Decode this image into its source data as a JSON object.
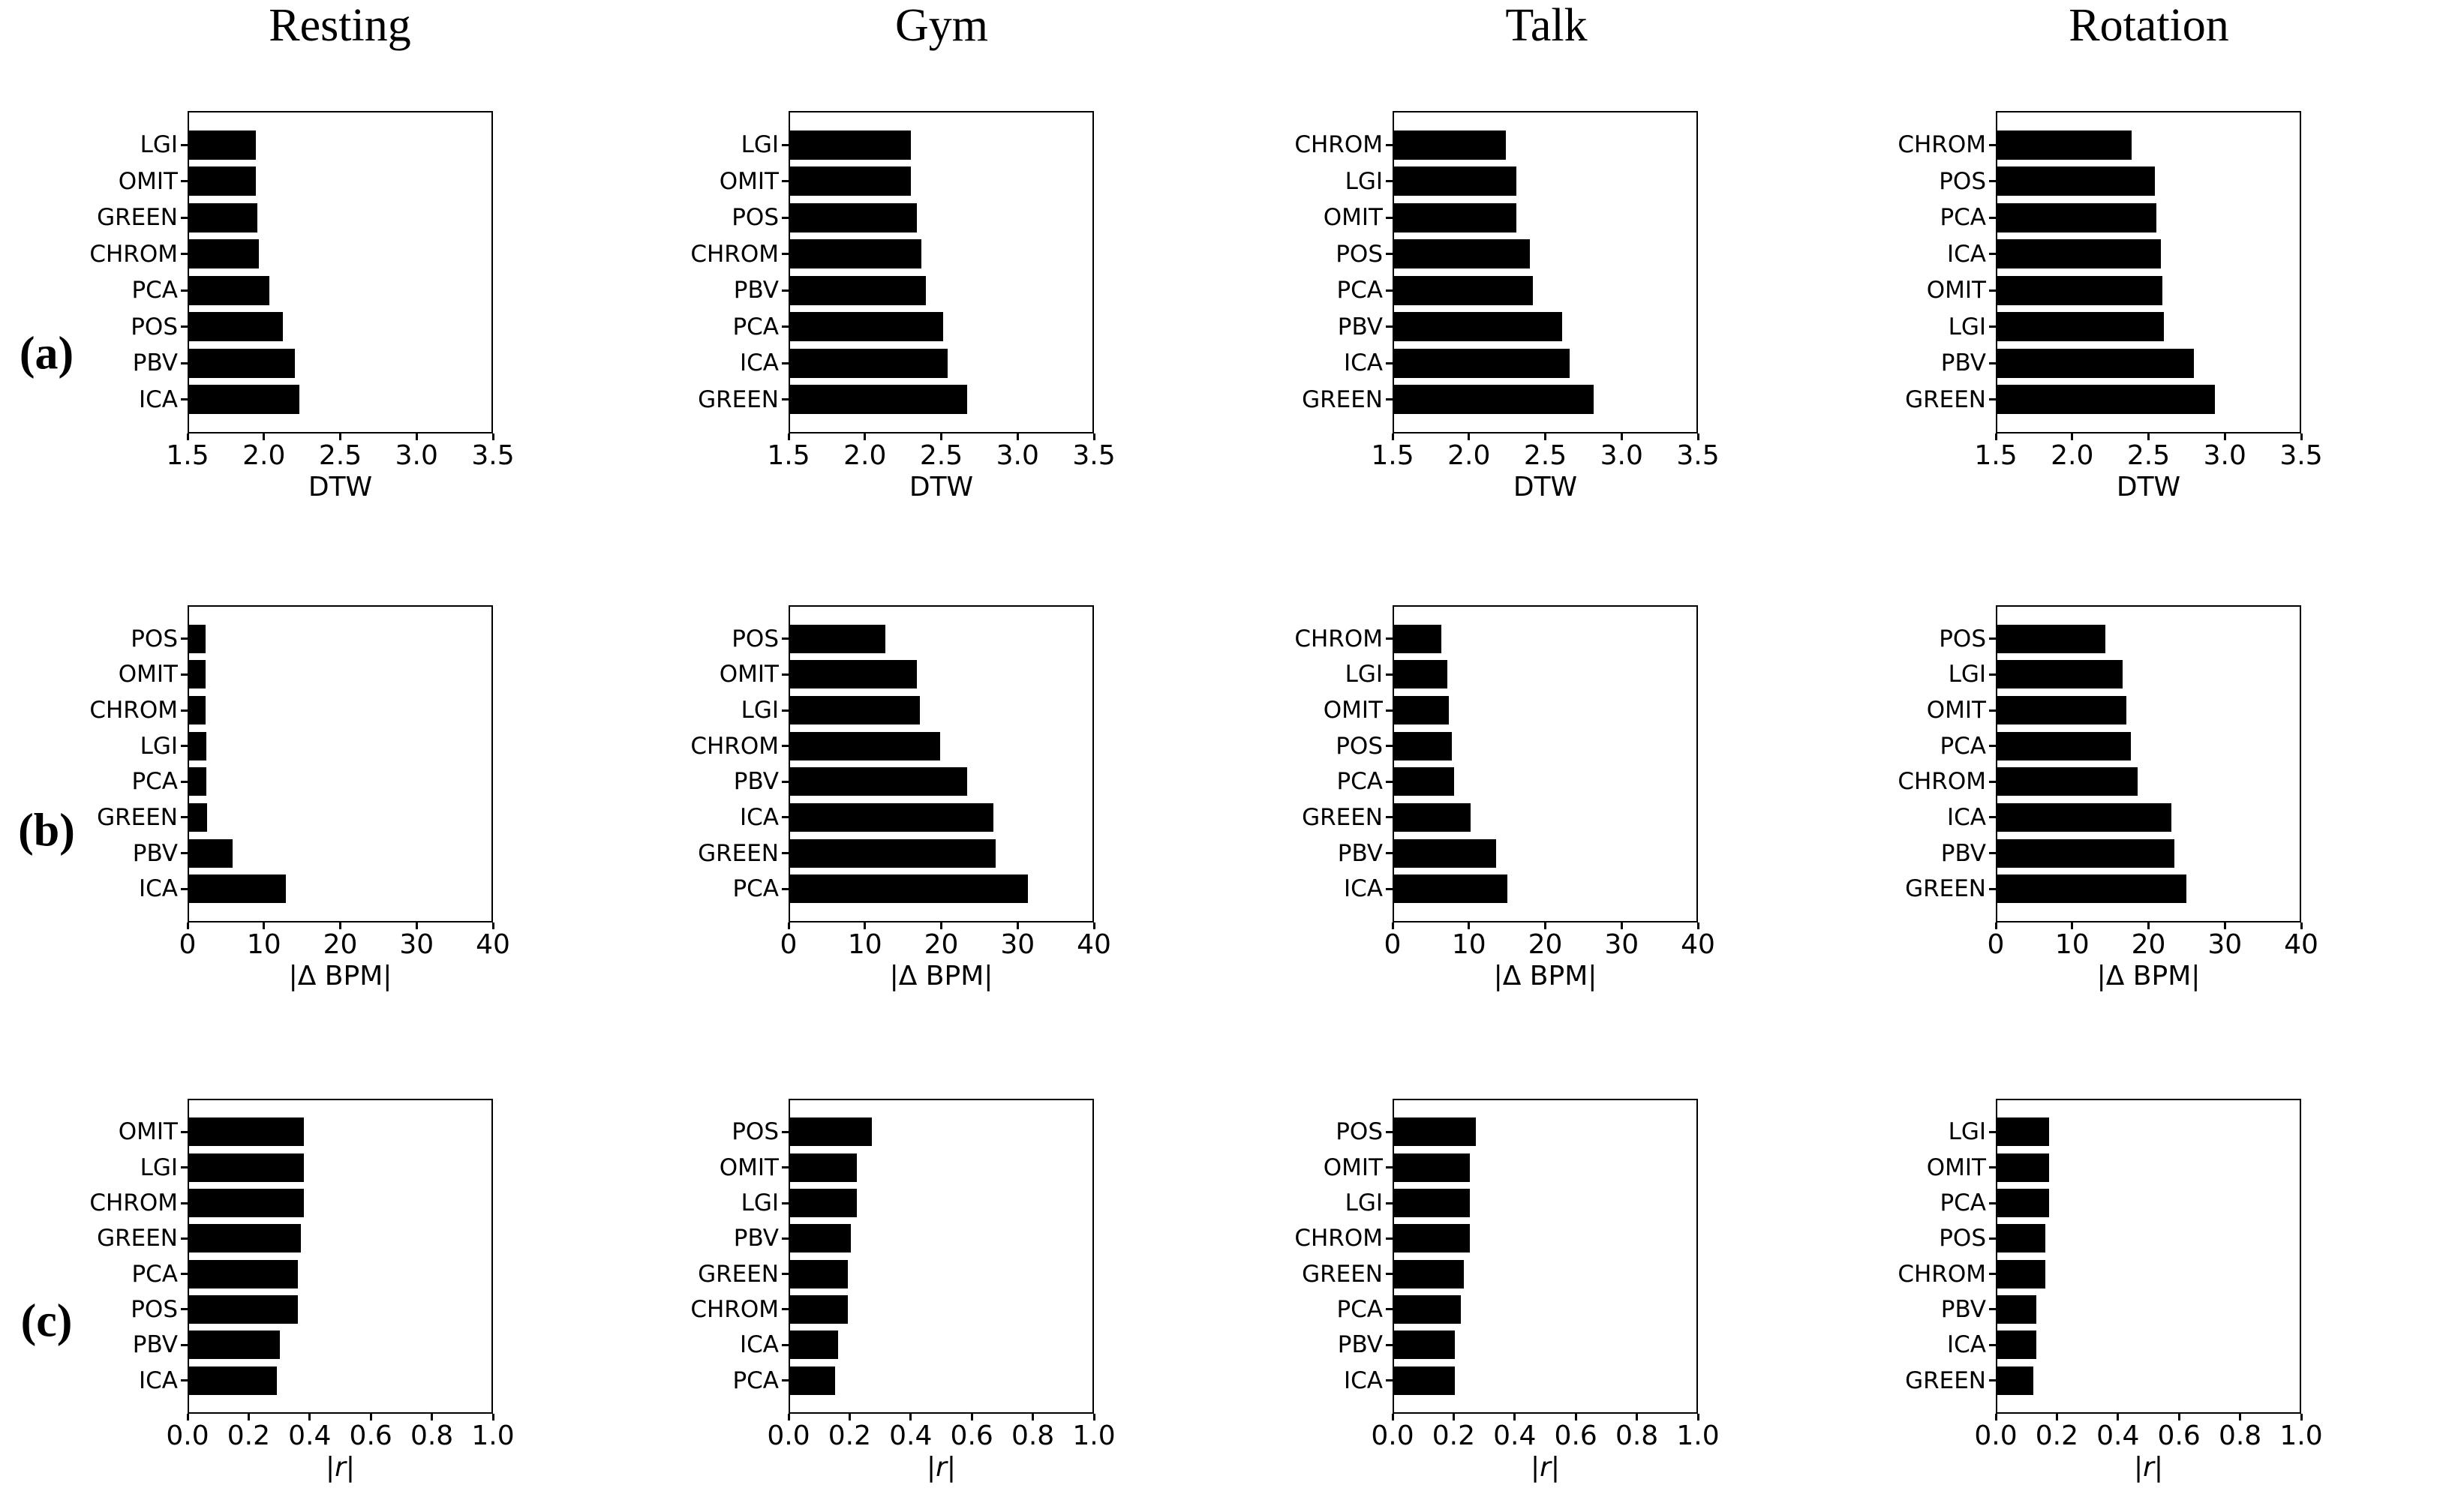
{
  "figure": {
    "background": "#ffffff",
    "bar_color": "#000000",
    "text_color": "#000000",
    "column_titles": [
      "Resting",
      "Gym",
      "Talk",
      "Rotation"
    ],
    "row_labels": [
      "(a)",
      "(b)",
      "(c)"
    ]
  },
  "chart_data": [
    {
      "type": "bar",
      "orientation": "horizontal",
      "row": "a",
      "column_title": "Resting",
      "xlabel": "DTW",
      "xlim": [
        1.5,
        3.5
      ],
      "xticks": [
        1.5,
        2.0,
        2.5,
        3.0,
        3.5
      ],
      "xtick_labels": [
        "1.5",
        "2.0",
        "2.5",
        "3.0",
        "3.5"
      ],
      "grid": false,
      "legend": false,
      "categories": [
        "LGI",
        "OMIT",
        "GREEN",
        "CHROM",
        "PCA",
        "POS",
        "PBV",
        "ICA"
      ],
      "values": [
        1.94,
        1.94,
        1.95,
        1.96,
        2.03,
        2.12,
        2.2,
        2.23
      ]
    },
    {
      "type": "bar",
      "orientation": "horizontal",
      "row": "a",
      "column_title": "Gym",
      "xlabel": "DTW",
      "xlim": [
        1.5,
        3.5
      ],
      "xticks": [
        1.5,
        2.0,
        2.5,
        3.0,
        3.5
      ],
      "xtick_labels": [
        "1.5",
        "2.0",
        "2.5",
        "3.0",
        "3.5"
      ],
      "grid": false,
      "legend": false,
      "categories": [
        "LGI",
        "OMIT",
        "POS",
        "CHROM",
        "PBV",
        "PCA",
        "ICA",
        "GREEN"
      ],
      "values": [
        2.3,
        2.3,
        2.34,
        2.37,
        2.4,
        2.51,
        2.54,
        2.67
      ]
    },
    {
      "type": "bar",
      "orientation": "horizontal",
      "row": "a",
      "column_title": "Talk",
      "xlabel": "DTW",
      "xlim": [
        1.5,
        3.5
      ],
      "xticks": [
        1.5,
        2.0,
        2.5,
        3.0,
        3.5
      ],
      "xtick_labels": [
        "1.5",
        "2.0",
        "2.5",
        "3.0",
        "3.5"
      ],
      "grid": false,
      "legend": false,
      "categories": [
        "CHROM",
        "LGI",
        "OMIT",
        "POS",
        "PCA",
        "PBV",
        "ICA",
        "GREEN"
      ],
      "values": [
        2.24,
        2.31,
        2.31,
        2.4,
        2.42,
        2.61,
        2.66,
        2.82
      ]
    },
    {
      "type": "bar",
      "orientation": "horizontal",
      "row": "a",
      "column_title": "Rotation",
      "xlabel": "DTW",
      "xlim": [
        1.5,
        3.5
      ],
      "xticks": [
        1.5,
        2.0,
        2.5,
        3.0,
        3.5
      ],
      "xtick_labels": [
        "1.5",
        "2.0",
        "2.5",
        "3.0",
        "3.5"
      ],
      "grid": false,
      "legend": false,
      "categories": [
        "CHROM",
        "POS",
        "PCA",
        "ICA",
        "OMIT",
        "LGI",
        "PBV",
        "GREEN"
      ],
      "values": [
        2.39,
        2.54,
        2.55,
        2.58,
        2.59,
        2.6,
        2.8,
        2.94
      ]
    },
    {
      "type": "bar",
      "orientation": "horizontal",
      "row": "b",
      "column_title": "Resting",
      "xlabel": "|Δ BPM|",
      "xlim": [
        0,
        40
      ],
      "xticks": [
        0,
        10,
        20,
        30,
        40
      ],
      "xtick_labels": [
        "0",
        "10",
        "20",
        "30",
        "40"
      ],
      "grid": false,
      "legend": false,
      "categories": [
        "POS",
        "OMIT",
        "CHROM",
        "LGI",
        "PCA",
        "GREEN",
        "PBV",
        "ICA"
      ],
      "values": [
        2.2,
        2.2,
        2.2,
        2.3,
        2.3,
        2.4,
        5.8,
        12.8
      ]
    },
    {
      "type": "bar",
      "orientation": "horizontal",
      "row": "b",
      "column_title": "Gym",
      "xlabel": "|Δ BPM|",
      "xlim": [
        0,
        40
      ],
      "xticks": [
        0,
        10,
        20,
        30,
        40
      ],
      "xtick_labels": [
        "0",
        "10",
        "20",
        "30",
        "40"
      ],
      "grid": false,
      "legend": false,
      "categories": [
        "POS",
        "OMIT",
        "LGI",
        "CHROM",
        "PBV",
        "ICA",
        "GREEN",
        "PCA"
      ],
      "values": [
        12.6,
        16.8,
        17.2,
        19.9,
        23.4,
        26.9,
        27.2,
        31.5
      ]
    },
    {
      "type": "bar",
      "orientation": "horizontal",
      "row": "b",
      "column_title": "Talk",
      "xlabel": "|Δ BPM|",
      "xlim": [
        0,
        40
      ],
      "xticks": [
        0,
        10,
        20,
        30,
        40
      ],
      "xtick_labels": [
        "0",
        "10",
        "20",
        "30",
        "40"
      ],
      "grid": false,
      "legend": false,
      "categories": [
        "CHROM",
        "LGI",
        "OMIT",
        "POS",
        "PCA",
        "GREEN",
        "PBV",
        "ICA"
      ],
      "values": [
        6.3,
        7.0,
        7.2,
        7.6,
        7.9,
        10.1,
        13.5,
        15.0
      ]
    },
    {
      "type": "bar",
      "orientation": "horizontal",
      "row": "b",
      "column_title": "Rotation",
      "xlabel": "|Δ BPM|",
      "xlim": [
        0,
        40
      ],
      "xticks": [
        0,
        10,
        20,
        30,
        40
      ],
      "xtick_labels": [
        "0",
        "10",
        "20",
        "30",
        "40"
      ],
      "grid": false,
      "legend": false,
      "categories": [
        "POS",
        "LGI",
        "OMIT",
        "PCA",
        "CHROM",
        "ICA",
        "PBV",
        "GREEN"
      ],
      "values": [
        14.3,
        16.6,
        17.1,
        17.7,
        18.6,
        23.0,
        23.4,
        25.0
      ]
    },
    {
      "type": "bar",
      "orientation": "horizontal",
      "row": "c",
      "column_title": "Resting",
      "xlabel": "|r|",
      "xlabel_math_italic": true,
      "xlim": [
        0,
        1
      ],
      "xticks": [
        0,
        0.2,
        0.4,
        0.6,
        0.8,
        1.0
      ],
      "xtick_labels": [
        "0.0",
        "0.2",
        "0.4",
        "0.6",
        "0.8",
        "1.0"
      ],
      "grid": false,
      "legend": false,
      "categories": [
        "OMIT",
        "LGI",
        "CHROM",
        "GREEN",
        "PCA",
        "POS",
        "PBV",
        "ICA"
      ],
      "values": [
        0.38,
        0.38,
        0.38,
        0.37,
        0.36,
        0.36,
        0.3,
        0.29
      ]
    },
    {
      "type": "bar",
      "orientation": "horizontal",
      "row": "c",
      "column_title": "Gym",
      "xlabel": "|r|",
      "xlabel_math_italic": true,
      "xlim": [
        0,
        1
      ],
      "xticks": [
        0,
        0.2,
        0.4,
        0.6,
        0.8,
        1.0
      ],
      "xtick_labels": [
        "0.0",
        "0.2",
        "0.4",
        "0.6",
        "0.8",
        "1.0"
      ],
      "grid": false,
      "legend": false,
      "categories": [
        "POS",
        "OMIT",
        "LGI",
        "PBV",
        "GREEN",
        "CHROM",
        "ICA",
        "PCA"
      ],
      "values": [
        0.27,
        0.22,
        0.22,
        0.2,
        0.19,
        0.19,
        0.16,
        0.15
      ]
    },
    {
      "type": "bar",
      "orientation": "horizontal",
      "row": "c",
      "column_title": "Talk",
      "xlabel": "|r|",
      "xlabel_math_italic": true,
      "xlim": [
        0,
        1
      ],
      "xticks": [
        0,
        0.2,
        0.4,
        0.6,
        0.8,
        1.0
      ],
      "xtick_labels": [
        "0.0",
        "0.2",
        "0.4",
        "0.6",
        "0.8",
        "1.0"
      ],
      "grid": false,
      "legend": false,
      "categories": [
        "POS",
        "OMIT",
        "LGI",
        "CHROM",
        "GREEN",
        "PCA",
        "PBV",
        "ICA"
      ],
      "values": [
        0.27,
        0.25,
        0.25,
        0.25,
        0.23,
        0.22,
        0.2,
        0.2
      ]
    },
    {
      "type": "bar",
      "orientation": "horizontal",
      "row": "c",
      "column_title": "Rotation",
      "xlabel": "|r|",
      "xlabel_math_italic": true,
      "xlim": [
        0,
        1
      ],
      "xticks": [
        0,
        0.2,
        0.4,
        0.6,
        0.8,
        1.0
      ],
      "xtick_labels": [
        "0.0",
        "0.2",
        "0.4",
        "0.6",
        "0.8",
        "1.0"
      ],
      "grid": false,
      "legend": false,
      "categories": [
        "LGI",
        "OMIT",
        "PCA",
        "POS",
        "CHROM",
        "PBV",
        "ICA",
        "GREEN"
      ],
      "values": [
        0.17,
        0.17,
        0.17,
        0.16,
        0.16,
        0.13,
        0.13,
        0.12
      ]
    }
  ]
}
